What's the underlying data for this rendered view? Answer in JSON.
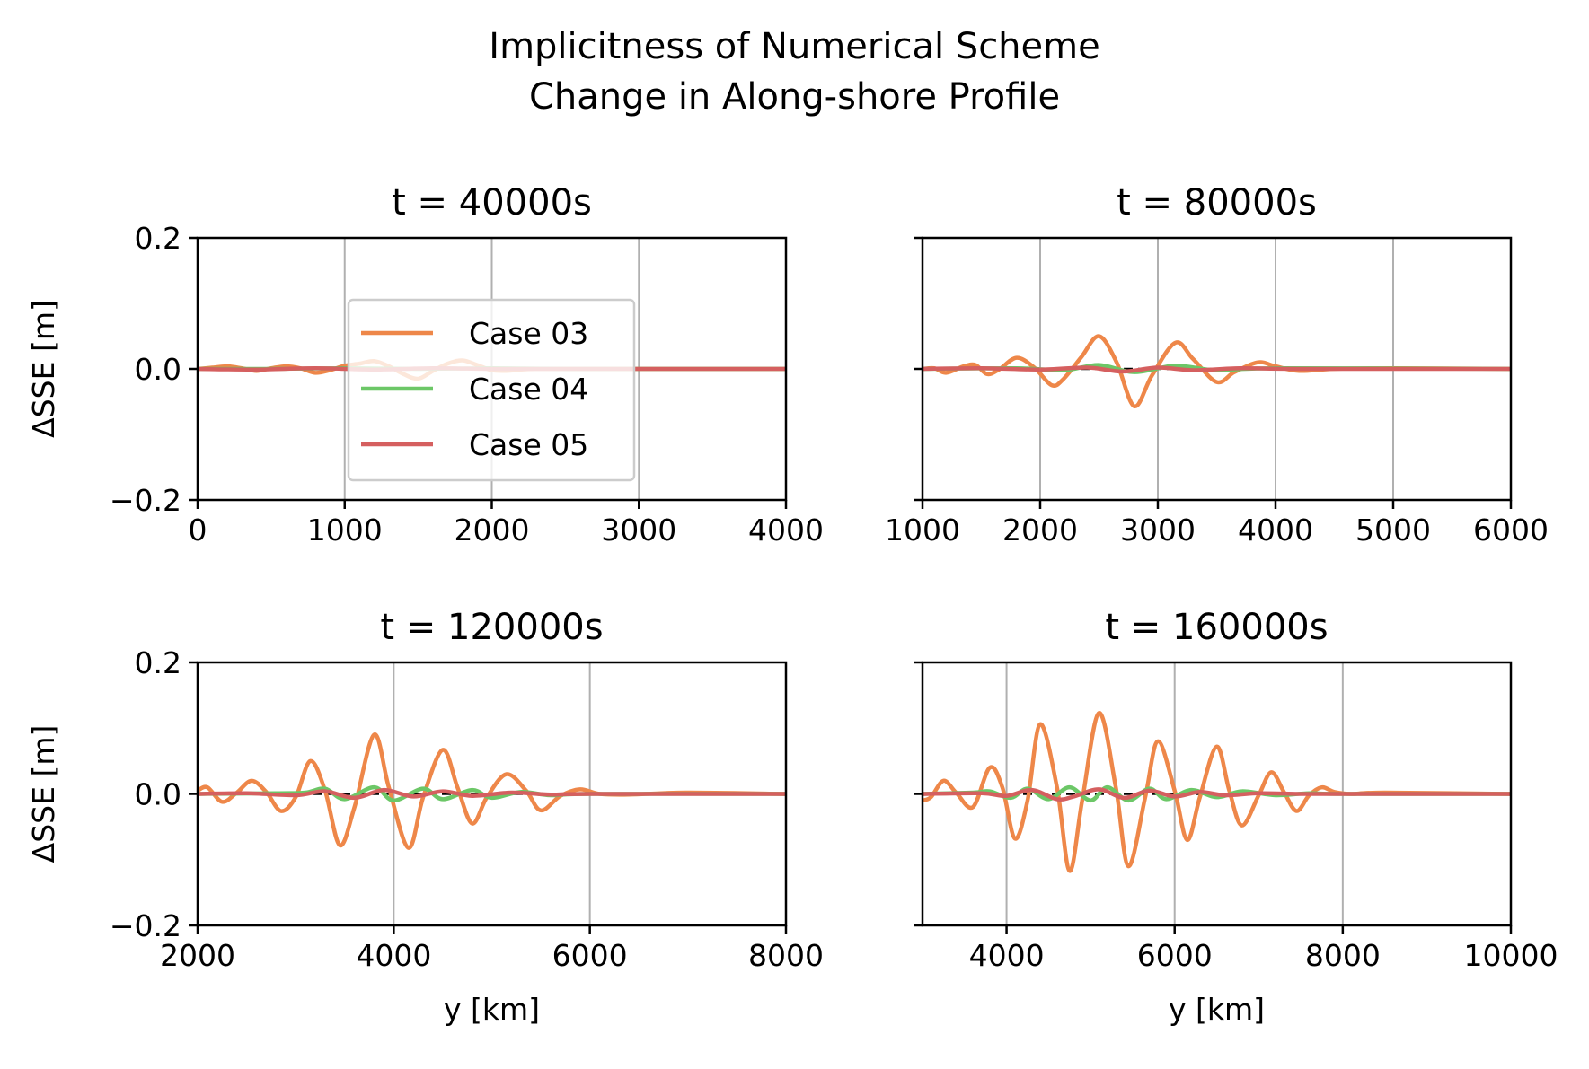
{
  "figure": {
    "title_line1": "Implicitness of Numerical Scheme",
    "title_line2": "Change in Along-shore Profile"
  },
  "colors": {
    "Case 03": "#ee8749",
    "Case 04": "#6cc767",
    "Case 05": "#d55f5f",
    "grid": "#b0b0b0",
    "zero_line": "#000000"
  },
  "legend": {
    "placement": "center-left of first panel",
    "entries": [
      "Case 03",
      "Case 04",
      "Case 05"
    ]
  },
  "chart_data": [
    {
      "type": "line",
      "title": "t = 40000s",
      "xlabel": "",
      "ylabel": "ΔSSE [m]",
      "xlim": [
        0,
        4000
      ],
      "ylim": [
        -0.2,
        0.2
      ],
      "xticks": [
        0,
        1000,
        2000,
        3000,
        4000
      ],
      "xtick_labels": [
        "0",
        "1000",
        "2000",
        "3000",
        "4000"
      ],
      "yticks": [
        -0.2,
        0.0,
        0.2
      ],
      "ytick_labels": [
        "−0.2",
        "0.0",
        "0.2"
      ],
      "grid": "x",
      "series": [
        {
          "name": "Case 03",
          "x": [
            0,
            100,
            200,
            300,
            400,
            500,
            600,
            700,
            800,
            900,
            1000,
            1100,
            1200,
            1300,
            1400,
            1500,
            1600,
            1700,
            1800,
            1900,
            2000,
            2100,
            2200,
            2300,
            2400,
            2600,
            3000,
            3500,
            4000
          ],
          "values": [
            0,
            0.002,
            0.004,
            0.001,
            -0.003,
            0.001,
            0.004,
            0.001,
            -0.006,
            -0.002,
            0.005,
            0.008,
            0.012,
            0.004,
            -0.008,
            -0.015,
            -0.003,
            0.008,
            0.013,
            0.006,
            -0.002,
            -0.003,
            -0.001,
            0,
            0,
            0,
            0,
            0,
            0
          ]
        },
        {
          "name": "Case 04",
          "x": [
            0,
            500,
            1000,
            1500,
            2000,
            2500,
            3000,
            4000
          ],
          "values": [
            0,
            0,
            0.001,
            0,
            0.001,
            0,
            0,
            0
          ]
        },
        {
          "name": "Case 05",
          "x": [
            0,
            400,
            800,
            1200,
            1600,
            2000,
            2400,
            3000,
            4000
          ],
          "values": [
            0,
            -0.001,
            0.001,
            -0.001,
            0.001,
            0,
            0,
            0,
            0
          ]
        }
      ]
    },
    {
      "type": "line",
      "title": "t = 80000s",
      "xlabel": "",
      "ylabel": "",
      "xlim": [
        1000,
        6000
      ],
      "ylim": [
        -0.2,
        0.2
      ],
      "xticks": [
        1000,
        2000,
        3000,
        4000,
        5000,
        6000
      ],
      "xtick_labels": [
        "1000",
        "2000",
        "3000",
        "4000",
        "5000",
        "6000"
      ],
      "yticks": [
        -0.2,
        0.0,
        0.2
      ],
      "ytick_labels": [
        "",
        "",
        ""
      ],
      "grid": "x",
      "series": [
        {
          "name": "Case 03",
          "x": [
            1000,
            1100,
            1200,
            1350,
            1450,
            1550,
            1650,
            1800,
            1950,
            2100,
            2200,
            2350,
            2500,
            2650,
            2800,
            2950,
            3150,
            3300,
            3500,
            3650,
            3850,
            4000,
            4200,
            4500,
            5000,
            6000
          ],
          "values": [
            0,
            0.001,
            -0.006,
            0.004,
            0.006,
            -0.008,
            -0.001,
            0.017,
            0.002,
            -0.025,
            -0.015,
            0.018,
            0.05,
            0.01,
            -0.057,
            -0.01,
            0.04,
            0.015,
            -0.02,
            -0.005,
            0.01,
            0.004,
            -0.003,
            0,
            0.001,
            0
          ]
        },
        {
          "name": "Case 04",
          "x": [
            1000,
            1800,
            2200,
            2500,
            2800,
            3150,
            3500,
            4000,
            6000
          ],
          "values": [
            0,
            0.001,
            -0.002,
            0.006,
            -0.005,
            0.005,
            -0.002,
            0.001,
            0
          ]
        },
        {
          "name": "Case 05",
          "x": [
            1000,
            1500,
            2000,
            2400,
            2700,
            3000,
            3300,
            3700,
            4200,
            6000
          ],
          "values": [
            0,
            0.001,
            -0.001,
            0.002,
            -0.004,
            0.002,
            -0.002,
            0.001,
            0,
            0
          ]
        }
      ]
    },
    {
      "type": "line",
      "title": "t = 120000s",
      "xlabel": "y [km]",
      "ylabel": "ΔSSE [m]",
      "xlim": [
        2000,
        8000
      ],
      "ylim": [
        -0.2,
        0.2
      ],
      "xticks": [
        2000,
        4000,
        6000,
        8000
      ],
      "xtick_labels": [
        "2000",
        "4000",
        "6000",
        "8000"
      ],
      "yticks": [
        -0.2,
        0.0,
        0.2
      ],
      "ytick_labels": [
        "−0.2",
        "0.0",
        "0.2"
      ],
      "grid": "x",
      "series": [
        {
          "name": "Case 03",
          "x": [
            2000,
            2100,
            2250,
            2400,
            2550,
            2700,
            2850,
            3000,
            3150,
            3300,
            3450,
            3600,
            3800,
            3950,
            4150,
            4300,
            4500,
            4650,
            4800,
            4950,
            5150,
            5350,
            5500,
            5700,
            5900,
            6100,
            6400,
            7000,
            8000
          ],
          "values": [
            0.005,
            0.01,
            -0.012,
            0.002,
            0.02,
            0.003,
            -0.026,
            -0.005,
            0.05,
            0.005,
            -0.078,
            -0.02,
            0.09,
            0.01,
            -0.082,
            -0.005,
            0.067,
            0.01,
            -0.045,
            -0.005,
            0.03,
            0.005,
            -0.025,
            -0.003,
            0.007,
            0,
            -0.001,
            0.002,
            0
          ]
        },
        {
          "name": "Case 04",
          "x": [
            2000,
            2800,
            3100,
            3300,
            3500,
            3800,
            4000,
            4300,
            4500,
            4800,
            5000,
            5300,
            5600,
            6000,
            8000
          ],
          "values": [
            0,
            0.001,
            0.002,
            0.008,
            -0.008,
            0.01,
            -0.01,
            0.008,
            -0.008,
            0.006,
            -0.006,
            0.003,
            -0.002,
            0,
            0
          ]
        },
        {
          "name": "Case 05",
          "x": [
            2000,
            2500,
            3000,
            3300,
            3600,
            3900,
            4200,
            4500,
            4800,
            5200,
            5600,
            6000,
            8000
          ],
          "values": [
            0,
            0.001,
            -0.002,
            0.004,
            -0.006,
            0.006,
            -0.004,
            0.004,
            -0.003,
            0.002,
            -0.001,
            0,
            0
          ]
        }
      ]
    },
    {
      "type": "line",
      "title": "t = 160000s",
      "xlabel": "y [km]",
      "ylabel": "",
      "xlim": [
        3000,
        10000
      ],
      "ylim": [
        -0.2,
        0.2
      ],
      "xticks": [
        4000,
        6000,
        8000,
        10000
      ],
      "xtick_labels": [
        "4000",
        "6000",
        "8000",
        "10000"
      ],
      "yticks": [
        -0.2,
        0.0,
        0.2
      ],
      "ytick_labels": [
        "",
        "",
        ""
      ],
      "grid": "x",
      "series": [
        {
          "name": "Case 03",
          "x": [
            3000,
            3100,
            3250,
            3400,
            3600,
            3800,
            3950,
            4100,
            4250,
            4400,
            4600,
            4750,
            4900,
            5100,
            5300,
            5450,
            5650,
            5800,
            6000,
            6150,
            6300,
            6500,
            6650,
            6800,
            7000,
            7150,
            7300,
            7450,
            7600,
            7750,
            7900,
            8100,
            8500,
            10000
          ],
          "values": [
            -0.01,
            -0.005,
            0.02,
            0.002,
            -0.02,
            0.04,
            0.01,
            -0.068,
            -0.01,
            0.106,
            0.01,
            -0.117,
            -0.01,
            0.123,
            0.01,
            -0.11,
            -0.005,
            0.08,
            0.005,
            -0.07,
            -0.005,
            0.072,
            0.005,
            -0.048,
            -0.002,
            0.033,
            0.003,
            -0.026,
            -0.002,
            0.01,
            0.003,
            0,
            0.002,
            0
          ]
        },
        {
          "name": "Case 04",
          "x": [
            3000,
            3600,
            3800,
            4050,
            4250,
            4500,
            4750,
            5000,
            5200,
            5450,
            5700,
            5900,
            6200,
            6500,
            6800,
            7200,
            7600,
            8000,
            10000
          ],
          "values": [
            0,
            0.002,
            0.004,
            -0.006,
            0.008,
            -0.008,
            0.01,
            -0.01,
            0.01,
            -0.01,
            0.008,
            -0.008,
            0.006,
            -0.005,
            0.004,
            -0.002,
            0.001,
            0,
            0
          ]
        },
        {
          "name": "Case 05",
          "x": [
            3000,
            3700,
            4000,
            4300,
            4600,
            4800,
            5100,
            5400,
            5700,
            6000,
            6300,
            6600,
            7000,
            7500,
            8000,
            10000
          ],
          "values": [
            0,
            0.001,
            -0.003,
            0.006,
            -0.008,
            -0.004,
            0.007,
            -0.006,
            0.005,
            -0.004,
            0.003,
            -0.002,
            0.001,
            0,
            0,
            0
          ]
        }
      ]
    }
  ]
}
